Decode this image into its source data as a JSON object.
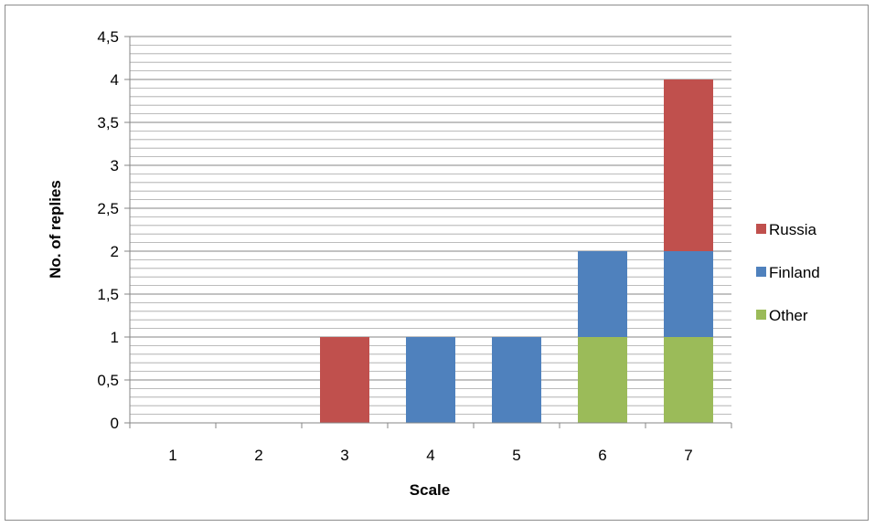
{
  "chart_data": {
    "type": "bar",
    "stacked": true,
    "categories": [
      "1",
      "2",
      "3",
      "4",
      "5",
      "6",
      "7"
    ],
    "series": [
      {
        "name": "Other",
        "color": "#9BBB59",
        "values": [
          0,
          0,
          0,
          0,
          0,
          1,
          1
        ]
      },
      {
        "name": "Finland",
        "color": "#4F81BD",
        "values": [
          0,
          0,
          0,
          1,
          1,
          1,
          1
        ]
      },
      {
        "name": "Russia",
        "color": "#C0504D",
        "values": [
          0,
          0,
          1,
          0,
          0,
          0,
          2
        ]
      }
    ],
    "legend_order": [
      "Russia",
      "Finland",
      "Other"
    ],
    "xlabel": "Scale",
    "ylabel": "No. of replies",
    "ylim": [
      0,
      4.5
    ],
    "yticks": [
      "0",
      "0,5",
      "1",
      "1,5",
      "2",
      "2,5",
      "3",
      "3,5",
      "4",
      "4,5"
    ],
    "grid": true,
    "minor_grid": true,
    "legend_position": "right"
  }
}
